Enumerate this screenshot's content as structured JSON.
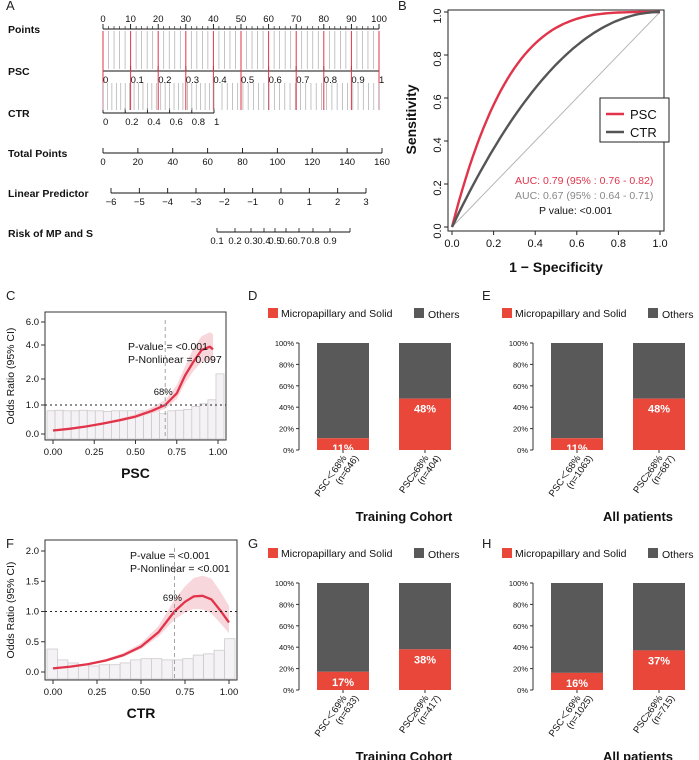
{
  "colors": {
    "red": "#e1334a",
    "dark": "#555555",
    "grey": "#888888",
    "bar_red": "#e8473a",
    "bar_dark": "#595959",
    "pink": "#f6c9d0"
  },
  "panel_letters": [
    "A",
    "B",
    "C",
    "D",
    "E",
    "F",
    "G",
    "H"
  ],
  "chart_data": [
    {
      "id": "A",
      "type": "nomogram",
      "rows": [
        {
          "label": "Points",
          "ticks": [
            "0",
            "10",
            "20",
            "30",
            "40",
            "50",
            "60",
            "70",
            "80",
            "90",
            "100"
          ]
        },
        {
          "label": "PSC",
          "ticks": [
            "0",
            "0.1",
            "0.2",
            "0.3",
            "0.4",
            "0.5",
            "0.6",
            "0.7",
            "0.8",
            "0.9",
            "1"
          ]
        },
        {
          "label": "CTR",
          "ticks": [
            "0",
            "0.2",
            "0.4",
            "0.6",
            "0.8",
            "1"
          ]
        },
        {
          "label": "Total Points",
          "ticks": [
            "0",
            "20",
            "40",
            "60",
            "80",
            "100",
            "120",
            "140",
            "160"
          ]
        },
        {
          "label": "Linear Predictor",
          "ticks": [
            "−6",
            "−5",
            "−4",
            "−3",
            "−2",
            "−1",
            "0",
            "1",
            "2",
            "3"
          ]
        },
        {
          "label": "Risk of MP and S",
          "ticks": [
            "0.1",
            "0.2",
            "0.3",
            "0.4",
            "0.5",
            "0.6",
            "0.7",
            "0.8",
            "0.9"
          ]
        }
      ]
    },
    {
      "id": "B",
      "type": "line",
      "xlabel": "1 − Specificity",
      "ylabel": "Sensitivity",
      "xlim": [
        0,
        1
      ],
      "ylim": [
        0,
        1
      ],
      "xticks": [
        "0.0",
        "0.2",
        "0.4",
        "0.6",
        "0.8",
        "1.0"
      ],
      "yticks": [
        "0.0",
        "0.2",
        "0.4",
        "0.6",
        "0.8",
        "1.0"
      ],
      "series": [
        {
          "name": "PSC",
          "auc": 0.79,
          "color": "#e1334a"
        },
        {
          "name": "CTR",
          "auc": 0.67,
          "color": "#555555"
        }
      ],
      "annotations": [
        "AUC: 0.79  (95% : 0.76 - 0.82)",
        "AUC: 0.67  (95% : 0.64 - 0.71)",
        "P value:  <0.001"
      ]
    },
    {
      "id": "C",
      "type": "line",
      "xlabel": "PSC",
      "ylabel": "Odds Ratio (95% CI)",
      "xticks": [
        "0.00",
        "0.25",
        "0.50",
        "0.75",
        "1.00"
      ],
      "yticks": [
        "0.0",
        "1.0",
        "2.0",
        "4.0",
        "6.0"
      ],
      "cutoff_label": "68%",
      "cutoff": 0.68,
      "annotations": [
        "P-value = <0.001",
        "P-Nonlinear = 0.097"
      ],
      "curve": {
        "x": [
          0.0,
          0.1,
          0.2,
          0.3,
          0.4,
          0.5,
          0.6,
          0.68,
          0.75,
          0.8,
          0.85,
          0.9,
          0.95,
          0.97
        ],
        "y": [
          0.12,
          0.18,
          0.26,
          0.36,
          0.47,
          0.6,
          0.8,
          1.0,
          1.45,
          2.2,
          3.0,
          3.7,
          3.9,
          3.75
        ]
      },
      "histogram": [
        0.8,
        0.82,
        0.8,
        0.8,
        0.82,
        0.8,
        0.8,
        0.78,
        0.8,
        0.8,
        0.8,
        0.8,
        0.8,
        0.88,
        0.7,
        0.8,
        0.82,
        0.85,
        0.95,
        1.05,
        1.2,
        2.3
      ]
    },
    {
      "id": "D",
      "type": "bar",
      "title": "Training Cohort",
      "legend": [
        "Micropapillary and Solid",
        "Others"
      ],
      "categories": [
        "PSC＜68%\n(n=646)",
        "PSC≥68%\n(n=404)"
      ],
      "series": [
        {
          "name": "Micropapillary and Solid",
          "values": [
            11,
            48
          ]
        },
        {
          "name": "Others",
          "values": [
            89,
            52
          ]
        }
      ],
      "labels": [
        "11%",
        "48%"
      ],
      "yticks": [
        "0%",
        "20%",
        "40%",
        "60%",
        "80%",
        "100%"
      ]
    },
    {
      "id": "E",
      "type": "bar",
      "title": "All patients",
      "legend": [
        "Micropapillary and Solid",
        "Others"
      ],
      "categories": [
        "PSC＜68%\n(n=1063)",
        "PSC≥68%\n(n=687)"
      ],
      "series": [
        {
          "name": "Micropapillary and Solid",
          "values": [
            11,
            48
          ]
        },
        {
          "name": "Others",
          "values": [
            89,
            52
          ]
        }
      ],
      "labels": [
        "11%",
        "48%"
      ],
      "yticks": [
        "0%",
        "20%",
        "40%",
        "60%",
        "80%",
        "100%"
      ]
    },
    {
      "id": "F",
      "type": "line",
      "xlabel": "CTR",
      "ylabel": "Odds Ratio (95% CI)",
      "xticks": [
        "0.00",
        "0.25",
        "0.50",
        "0.75",
        "1.00"
      ],
      "yticks": [
        "0.0",
        "0.5",
        "1.0",
        "1.5",
        "2.0"
      ],
      "cutoff_label": "69%",
      "cutoff": 0.69,
      "annotations": [
        "P-value = <0.001",
        "P-Nonlinear = <0.001"
      ],
      "curve": {
        "x": [
          0.0,
          0.1,
          0.2,
          0.3,
          0.4,
          0.5,
          0.6,
          0.69,
          0.75,
          0.8,
          0.85,
          0.9,
          0.95,
          1.0
        ],
        "y": [
          0.06,
          0.09,
          0.13,
          0.19,
          0.28,
          0.42,
          0.66,
          1.0,
          1.16,
          1.25,
          1.26,
          1.2,
          1.02,
          0.82
        ]
      },
      "histogram": [
        0.38,
        0.2,
        0.15,
        0.12,
        0.1,
        0.12,
        0.12,
        0.15,
        0.2,
        0.22,
        0.22,
        0.2,
        0.2,
        0.22,
        0.28,
        0.3,
        0.36,
        0.55
      ]
    },
    {
      "id": "G",
      "type": "bar",
      "title": "Training Cohort",
      "legend": [
        "Micropapillary and Solid",
        "Others"
      ],
      "categories": [
        "PSC＜69%\n(n=633)",
        "PSC≥69%\n(n=417)"
      ],
      "series": [
        {
          "name": "Micropapillary and Solid",
          "values": [
            17,
            38
          ]
        },
        {
          "name": "Others",
          "values": [
            83,
            62
          ]
        }
      ],
      "labels": [
        "17%",
        "38%"
      ],
      "yticks": [
        "0%",
        "20%",
        "40%",
        "60%",
        "80%",
        "100%"
      ]
    },
    {
      "id": "H",
      "type": "bar",
      "title": "All patients",
      "legend": [
        "Micropapillary and Solid",
        "Others"
      ],
      "categories": [
        "PSC＜69%\n(n=1025)",
        "PSC≥69%\n(n=715)"
      ],
      "series": [
        {
          "name": "Micropapillary and Solid",
          "values": [
            16,
            37
          ]
        },
        {
          "name": "Others",
          "values": [
            84,
            63
          ]
        }
      ],
      "labels": [
        "16%",
        "37%"
      ],
      "yticks": [
        "0%",
        "20%",
        "40%",
        "60%",
        "80%",
        "100%"
      ]
    }
  ]
}
